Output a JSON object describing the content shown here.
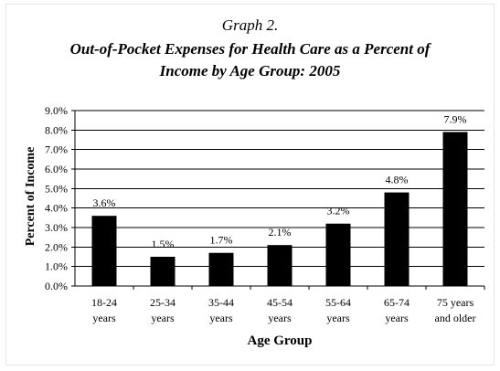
{
  "header": {
    "graph_label": "Graph 2.",
    "title_line1": "Out-of-Pocket Expenses for Health Care as a Percent of",
    "title_line2": "Income by Age Group: 2005"
  },
  "chart_data": {
    "type": "bar",
    "title": "Out-of-Pocket Expenses for Health Care as a Percent of Income by Age Group: 2005",
    "xlabel": "Age Group",
    "ylabel": "Percent of Income",
    "ylim": [
      0,
      9
    ],
    "y_ticks": [
      "0.0%",
      "1.0%",
      "2.0%",
      "3.0%",
      "4.0%",
      "5.0%",
      "6.0%",
      "7.0%",
      "8.0%",
      "9.0%"
    ],
    "grid": true,
    "bar_color": "#000000",
    "categories": [
      [
        "18-24",
        "years"
      ],
      [
        "25-34",
        "years"
      ],
      [
        "35-44",
        "years"
      ],
      [
        "45-54",
        "years"
      ],
      [
        "55-64",
        "years"
      ],
      [
        "65-74",
        "years"
      ],
      [
        "75 years",
        "and older"
      ]
    ],
    "values": [
      3.6,
      1.5,
      1.7,
      2.1,
      3.2,
      4.8,
      7.9
    ],
    "data_labels": [
      "3.6%",
      "1.5%",
      "1.7%",
      "2.1%",
      "3.2%",
      "4.8%",
      "7.9%"
    ]
  }
}
